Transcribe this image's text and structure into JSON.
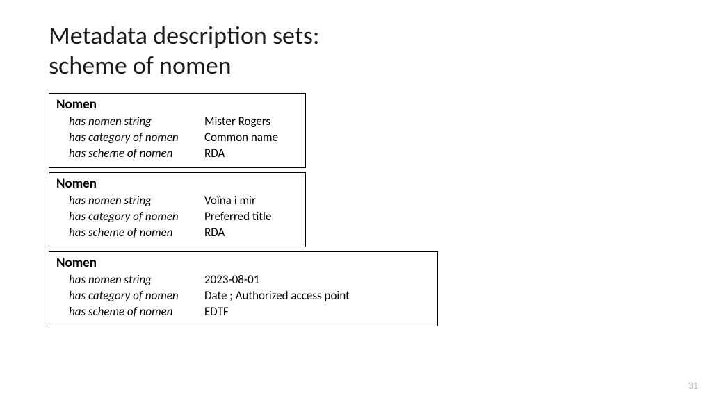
{
  "title_line1": "Metadata description sets:",
  "title_line2": "scheme of nomen",
  "boxes": [
    {
      "heading": "Nomen",
      "rows": [
        {
          "label": "has nomen string",
          "value": "Mister Rogers"
        },
        {
          "label": "has category of nomen",
          "value": "Common name"
        },
        {
          "label": "has scheme of nomen",
          "value": "RDA"
        }
      ]
    },
    {
      "heading": "Nomen",
      "rows": [
        {
          "label": "has nomen string",
          "value": "Voĭna i mir"
        },
        {
          "label": "has category of nomen",
          "value": "Preferred title"
        },
        {
          "label": "has scheme of nomen",
          "value": "RDA"
        }
      ]
    },
    {
      "heading": "Nomen",
      "rows": [
        {
          "label": "has nomen string",
          "value": "2023-08-01"
        },
        {
          "label": "has category of nomen",
          "value": "Date ; Authorized access point"
        },
        {
          "label": "has scheme of nomen",
          "value": "EDTF"
        }
      ]
    }
  ],
  "page_number": "31"
}
